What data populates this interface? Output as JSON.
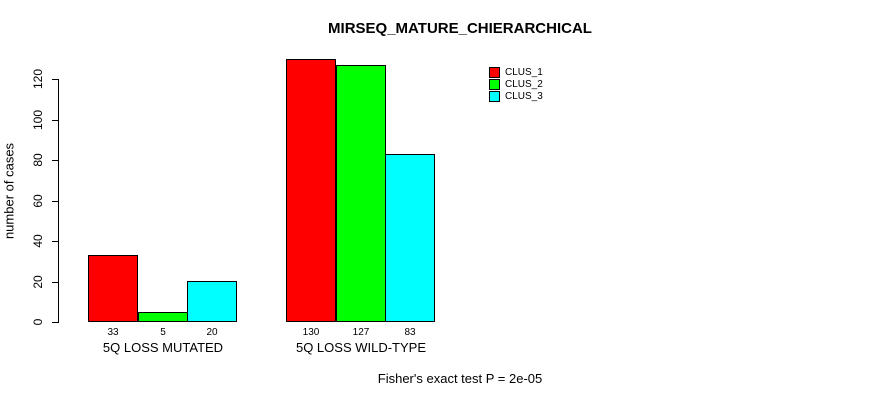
{
  "chart_data": {
    "type": "bar",
    "title": "MIRSEQ_MATURE_CHIERARCHICAL",
    "ylabel": "number of cases",
    "xlabel": "",
    "categories": [
      "5Q LOSS MUTATED",
      "5Q LOSS WILD-TYPE"
    ],
    "series": [
      {
        "name": "CLUS_1",
        "color": "#FF0000",
        "values": [
          33,
          130
        ]
      },
      {
        "name": "CLUS_2",
        "color": "#00FF00",
        "values": [
          5,
          127
        ]
      },
      {
        "name": "CLUS_3",
        "color": "#00FFFF",
        "values": [
          20,
          83
        ]
      }
    ],
    "bar_value_labels": [
      [
        "33",
        "5",
        "20"
      ],
      [
        "130",
        "127",
        "83"
      ]
    ],
    "yticks": [
      0,
      20,
      40,
      60,
      80,
      100,
      120
    ],
    "ylim": [
      0,
      130
    ],
    "grid": false,
    "legend_position": "top-right",
    "annotation": "Fisher's exact test P = 2e-05"
  }
}
